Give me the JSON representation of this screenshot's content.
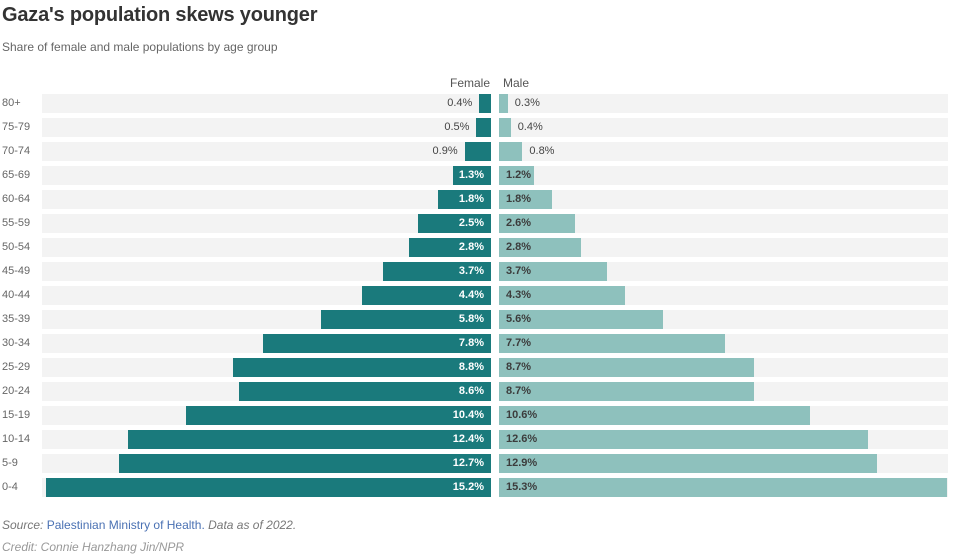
{
  "chart_data": {
    "type": "bar",
    "subtype": "population_pyramid",
    "title": "Gaza's population skews younger",
    "subtitle": "Share of female and male populations by age group",
    "categories": [
      "80+",
      "75-79",
      "70-74",
      "65-69",
      "60-64",
      "55-59",
      "50-54",
      "45-49",
      "40-44",
      "35-39",
      "30-34",
      "25-29",
      "20-24",
      "15-19",
      "10-14",
      "5-9",
      "0-4"
    ],
    "series": [
      {
        "name": "Female",
        "color": "#1a7a7c",
        "values": [
          0.4,
          0.5,
          0.9,
          1.3,
          1.8,
          2.5,
          2.8,
          3.7,
          4.4,
          5.8,
          7.8,
          8.8,
          8.6,
          10.4,
          12.4,
          12.7,
          15.2
        ]
      },
      {
        "name": "Male",
        "color": "#8ec1bd",
        "values": [
          0.3,
          0.4,
          0.8,
          1.2,
          1.8,
          2.6,
          2.8,
          3.7,
          4.3,
          5.6,
          7.7,
          8.7,
          8.7,
          10.6,
          12.6,
          12.9,
          15.3
        ]
      }
    ],
    "value_suffix": "%",
    "xlim": [
      0,
      15.3
    ],
    "grid": false,
    "legend_position": "top-center",
    "row_background_color": "#f3f3f3"
  },
  "footer": {
    "source_prefix": "Source: ",
    "source_link": "Palestinian Ministry of Health.",
    "source_note": " Data as of 2022.",
    "credit": "Credit: Connie Hanzhang Jin/NPR"
  }
}
